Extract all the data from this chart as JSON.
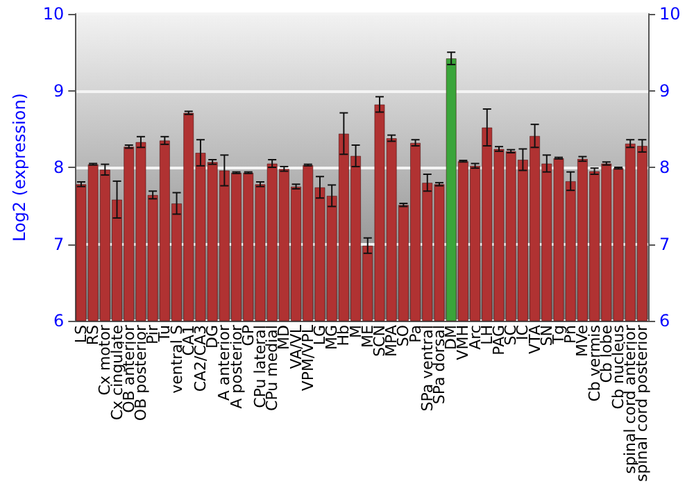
{
  "chart_data": {
    "type": "bar",
    "ylabel": "Log2 (expression)",
    "categories": [
      "LS",
      "RS",
      "Cx motor",
      "Cx cingulate",
      "OB anterior",
      "OB posterior",
      "Pir",
      "Tu",
      "ventral S",
      "CA1",
      "CA2/CA3",
      "DG",
      "A anterior",
      "A posterior",
      "GP",
      "CPu lateral",
      "CPu medial",
      "MD",
      "VA/VL",
      "VPM/VPL",
      "LG",
      "MG",
      "Hb",
      "M",
      "ME",
      "SCN",
      "MPA",
      "SO",
      "Pa",
      "SPa ventral",
      "SPa dorsal",
      "DM",
      "VMH",
      "Arc",
      "LH",
      "PAG",
      "SC",
      "IC",
      "VTA",
      "SN",
      "Tg",
      "Pn",
      "MVe",
      "Cb vermis",
      "Cb lobe",
      "Cb nucleus",
      "spinal cord anterior",
      "spinal cord posterior"
    ],
    "values": [
      7.78,
      8.04,
      7.97,
      7.58,
      8.27,
      8.33,
      7.64,
      8.35,
      7.53,
      8.71,
      8.19,
      8.07,
      7.96,
      7.93,
      7.93,
      7.78,
      8.05,
      7.98,
      7.75,
      8.03,
      7.74,
      7.63,
      8.44,
      8.15,
      6.98,
      8.82,
      8.38,
      7.51,
      8.32,
      7.8,
      7.78,
      9.42,
      8.08,
      8.02,
      8.52,
      8.24,
      8.21,
      8.1,
      8.41,
      8.05,
      8.12,
      7.82,
      8.11,
      7.95,
      8.05,
      7.99,
      8.31,
      8.28
    ],
    "errors": [
      0.03,
      0.01,
      0.07,
      0.24,
      0.02,
      0.07,
      0.05,
      0.05,
      0.14,
      0.02,
      0.17,
      0.03,
      0.2,
      0.01,
      0.01,
      0.03,
      0.05,
      0.03,
      0.03,
      0.01,
      0.14,
      0.14,
      0.27,
      0.14,
      0.1,
      0.1,
      0.04,
      0.02,
      0.04,
      0.11,
      0.02,
      0.08,
      0.01,
      0.03,
      0.24,
      0.03,
      0.02,
      0.14,
      0.15,
      0.11,
      0.01,
      0.12,
      0.03,
      0.04,
      0.02,
      0.01,
      0.05,
      0.08
    ],
    "colors": [
      "#b03232",
      "#b03232",
      "#b03232",
      "#b03232",
      "#b03232",
      "#b03232",
      "#b03232",
      "#b03232",
      "#b03232",
      "#b03232",
      "#b03232",
      "#b03232",
      "#b03232",
      "#b03232",
      "#b03232",
      "#b03232",
      "#b03232",
      "#b03232",
      "#b03232",
      "#b03232",
      "#b03232",
      "#b03232",
      "#b03232",
      "#b03232",
      "#b03232",
      "#b03232",
      "#b03232",
      "#b03232",
      "#b03232",
      "#b03232",
      "#b03232",
      "#3aa53a",
      "#b03232",
      "#b03232",
      "#b03232",
      "#b03232",
      "#b03232",
      "#b03232",
      "#b03232",
      "#b03232",
      "#b03232",
      "#b03232",
      "#b03232",
      "#b03232",
      "#b03232",
      "#b03232",
      "#b03232",
      "#b03232"
    ],
    "ylim": [
      6,
      10
    ],
    "yticks": [
      6,
      7,
      8,
      9,
      10
    ],
    "y2lim": [
      6,
      10
    ],
    "y2ticks": [
      6,
      7,
      8,
      9,
      10
    ],
    "grid": "y"
  }
}
